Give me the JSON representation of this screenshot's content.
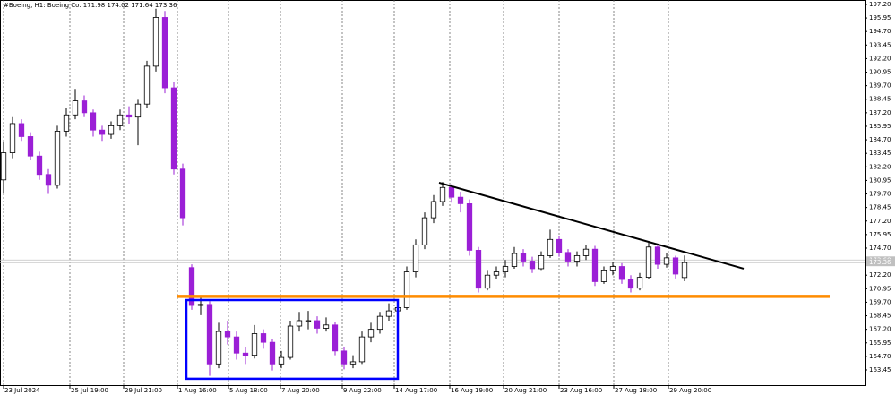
{
  "chart_data": {
    "type": "candlestick",
    "title": "#Boeing, H1:  Boeing Co.  171.98 174.02 171.64 173.36",
    "up_color": "#ffffff",
    "down_color": "#9b1fd6",
    "outline_color": "#000000",
    "xgrid": true,
    "xlim": [
      -0.4,
      96.1
    ],
    "ylim": [
      161.96,
      197.61
    ],
    "xticks": [
      {
        "value": 0,
        "label": "23 Jul 2024"
      },
      {
        "value": 7.4,
        "label": "25 Jul 19:00"
      },
      {
        "value": 13.4,
        "label": "29 Jul 21:00"
      },
      {
        "value": 19.4,
        "label": "1 Aug 16:00"
      },
      {
        "value": 25.1,
        "label": "5 Aug 18:00"
      },
      {
        "value": 30.9,
        "label": "7 Aug 20:00"
      },
      {
        "value": 37.8,
        "label": "9 Aug 22:00"
      },
      {
        "value": 43.6,
        "label": "14 Aug 17:00"
      },
      {
        "value": 49.8,
        "label": "16 Aug 19:00"
      },
      {
        "value": 55.8,
        "label": "20 Aug 21:00"
      },
      {
        "value": 62,
        "label": "23 Aug 16:00"
      },
      {
        "value": 68.1,
        "label": "27 Aug 18:00"
      },
      {
        "value": 74.2,
        "label": "29 Aug 20:00"
      }
    ],
    "yticks": [
      {
        "value": 163.45,
        "label": "163.45"
      },
      {
        "value": 164.7,
        "label": "164.70"
      },
      {
        "value": 165.95,
        "label": "165.95"
      },
      {
        "value": 167.2,
        "label": "167.20"
      },
      {
        "value": 168.45,
        "label": "168.45"
      },
      {
        "value": 169.7,
        "label": "169.70"
      },
      {
        "value": 170.95,
        "label": "170.95"
      },
      {
        "value": 172.2,
        "label": "172.20"
      },
      {
        "value": 173.45,
        "label": "173.45"
      },
      {
        "value": 174.7,
        "label": "174.70"
      },
      {
        "value": 175.95,
        "label": "175.95"
      },
      {
        "value": 177.2,
        "label": "177.20"
      },
      {
        "value": 178.45,
        "label": "178.45"
      },
      {
        "value": 179.7,
        "label": "179.70"
      },
      {
        "value": 180.95,
        "label": "180.95"
      },
      {
        "value": 182.2,
        "label": "182.20"
      },
      {
        "value": 183.45,
        "label": "183.45"
      },
      {
        "value": 184.7,
        "label": "184.70"
      },
      {
        "value": 185.95,
        "label": "185.95"
      },
      {
        "value": 187.2,
        "label": "187.20"
      },
      {
        "value": 188.45,
        "label": "188.45"
      },
      {
        "value": 189.7,
        "label": "189.70"
      },
      {
        "value": 190.95,
        "label": "190.95"
      },
      {
        "value": 192.2,
        "label": "192.20"
      },
      {
        "value": 193.45,
        "label": "193.45"
      },
      {
        "value": 194.7,
        "label": "194.70"
      },
      {
        "value": 195.95,
        "label": "195.95"
      },
      {
        "value": 197.2,
        "label": "197.20"
      }
    ],
    "candles": [
      [
        181.0,
        184.5,
        179.8,
        183.5
      ],
      [
        183.5,
        186.8,
        183.0,
        186.2
      ],
      [
        186.2,
        186.6,
        184.6,
        185.0
      ],
      [
        185.0,
        185.4,
        182.8,
        183.2
      ],
      [
        183.2,
        183.6,
        181.0,
        181.5
      ],
      [
        181.5,
        182.0,
        179.7,
        180.5
      ],
      [
        180.5,
        186.0,
        180.2,
        185.5
      ],
      [
        185.5,
        187.6,
        185.0,
        187.0
      ],
      [
        187.0,
        189.4,
        186.6,
        188.3
      ],
      [
        188.3,
        188.8,
        186.8,
        187.2
      ],
      [
        187.2,
        187.5,
        185.0,
        185.6
      ],
      [
        185.6,
        186.0,
        184.6,
        185.2
      ],
      [
        185.2,
        186.4,
        184.8,
        186.0
      ],
      [
        186.0,
        187.5,
        185.6,
        187.0
      ],
      [
        187.0,
        187.8,
        186.2,
        186.8
      ],
      [
        186.8,
        188.4,
        184.2,
        188.0
      ],
      [
        188.0,
        192.0,
        187.6,
        191.5
      ],
      [
        191.5,
        196.8,
        191.0,
        196.0
      ],
      [
        196.0,
        196.6,
        189.0,
        189.5
      ],
      [
        189.5,
        190.0,
        181.5,
        182.0
      ],
      [
        182.0,
        182.5,
        176.8,
        177.5
      ],
      [
        172.9,
        173.2,
        169.0,
        169.4
      ],
      [
        169.4,
        170.2,
        168.5,
        169.5
      ],
      [
        169.5,
        169.8,
        162.9,
        164.0
      ],
      [
        164.0,
        167.8,
        163.6,
        167.0
      ],
      [
        167.0,
        168.0,
        165.8,
        166.5
      ],
      [
        166.5,
        167.0,
        164.4,
        165.0
      ],
      [
        165.0,
        165.6,
        164.0,
        164.8
      ],
      [
        164.8,
        167.6,
        164.5,
        166.8
      ],
      [
        166.8,
        167.2,
        165.4,
        166.0
      ],
      [
        166.0,
        166.3,
        163.4,
        164.0
      ],
      [
        164.0,
        165.2,
        163.6,
        164.6
      ],
      [
        164.6,
        168.0,
        164.4,
        167.5
      ],
      [
        167.5,
        168.8,
        167.0,
        168.0
      ],
      [
        168.0,
        168.9,
        167.2,
        168.0
      ],
      [
        168.0,
        168.4,
        166.8,
        167.3
      ],
      [
        167.3,
        168.3,
        167.0,
        167.6
      ],
      [
        167.6,
        167.9,
        164.8,
        165.2
      ],
      [
        165.2,
        165.6,
        163.5,
        164.0
      ],
      [
        164.0,
        164.8,
        163.6,
        164.2
      ],
      [
        164.2,
        167.0,
        164.0,
        166.5
      ],
      [
        166.5,
        167.8,
        166.0,
        167.2
      ],
      [
        167.2,
        168.8,
        166.8,
        168.4
      ],
      [
        168.4,
        169.6,
        168.0,
        168.9
      ],
      [
        168.9,
        169.8,
        168.4,
        169.2
      ],
      [
        169.2,
        173.0,
        169.0,
        172.5
      ],
      [
        172.5,
        175.5,
        172.0,
        175.0
      ],
      [
        175.0,
        178.0,
        174.6,
        177.5
      ],
      [
        177.5,
        179.6,
        177.0,
        179.0
      ],
      [
        179.0,
        180.8,
        178.6,
        180.3
      ],
      [
        180.3,
        180.6,
        178.9,
        179.4
      ],
      [
        179.4,
        179.9,
        178.0,
        178.8
      ],
      [
        178.8,
        179.2,
        174.0,
        174.5
      ],
      [
        174.5,
        174.8,
        170.6,
        171.0
      ],
      [
        171.0,
        172.6,
        170.8,
        172.2
      ],
      [
        172.2,
        173.0,
        171.8,
        172.5
      ],
      [
        172.5,
        173.6,
        172.0,
        173.0
      ],
      [
        173.0,
        174.8,
        172.8,
        174.2
      ],
      [
        174.2,
        174.6,
        173.0,
        173.5
      ],
      [
        173.5,
        173.9,
        172.4,
        172.8
      ],
      [
        172.8,
        174.4,
        172.6,
        174.0
      ],
      [
        174.0,
        176.4,
        173.8,
        175.5
      ],
      [
        175.5,
        175.8,
        173.9,
        174.3
      ],
      [
        174.3,
        174.6,
        173.0,
        173.5
      ],
      [
        173.5,
        174.4,
        173.0,
        174.0
      ],
      [
        174.0,
        175.0,
        173.6,
        174.6
      ],
      [
        174.6,
        174.9,
        171.2,
        171.6
      ],
      [
        171.6,
        173.0,
        171.4,
        172.6
      ],
      [
        172.6,
        173.4,
        172.2,
        173.0
      ],
      [
        173.0,
        173.3,
        171.4,
        171.8
      ],
      [
        171.8,
        172.2,
        170.6,
        171.0
      ],
      [
        171.0,
        172.4,
        170.8,
        172.0
      ],
      [
        172.0,
        175.2,
        171.8,
        174.8
      ],
      [
        174.8,
        175.0,
        172.8,
        173.2
      ],
      [
        173.2,
        174.2,
        172.9,
        173.8
      ],
      [
        173.8,
        174.0,
        171.9,
        172.3
      ],
      [
        171.98,
        174.02,
        171.64,
        173.36
      ]
    ],
    "price_lines": [
      {
        "value": 173.6,
        "label": "173.60"
      },
      {
        "value": 173.36,
        "label": "173.36"
      }
    ],
    "trendline": {
      "x": [
        48.6,
        82.6
      ],
      "y": [
        180.74,
        172.8
      ],
      "color": "#000000"
    },
    "level": {
      "x": [
        19.3,
        92.2
      ],
      "y": 170.24,
      "color": "#ff8c00"
    },
    "box": {
      "x": [
        20.4,
        44.0
      ],
      "y": [
        169.9,
        162.63
      ],
      "color": "#0000ff"
    }
  }
}
